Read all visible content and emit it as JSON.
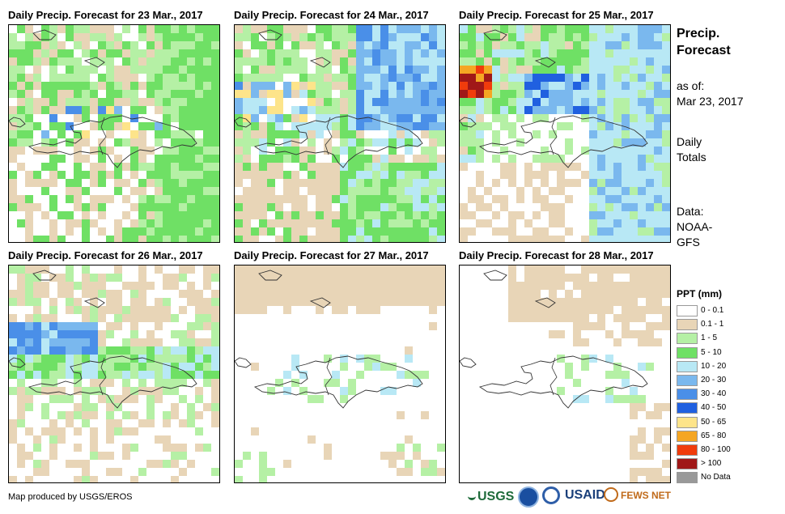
{
  "panels": [
    {
      "title": "Daily Precip. Forecast for 23 Mar., 2017",
      "pattern": "day23"
    },
    {
      "title": "Daily Precip. Forecast for 24 Mar., 2017",
      "pattern": "day24"
    },
    {
      "title": "Daily Precip. Forecast for 25 Mar., 2017",
      "pattern": "day25"
    },
    {
      "title": "Daily Precip. Forecast for 26 Mar., 2017",
      "pattern": "day26"
    },
    {
      "title": "Daily Precip. Forecast for 27 Mar., 2017",
      "pattern": "day27"
    },
    {
      "title": "Daily Precip. Forecast for 28 Mar., 2017",
      "pattern": "day28"
    }
  ],
  "sidebar": {
    "title_line1": "Precip.",
    "title_line2": "Forecast",
    "asof_label": "as of:",
    "asof_date": "Mar 23, 2017",
    "totals_line1": "Daily",
    "totals_line2": "Totals",
    "data_line1": "Data:",
    "data_line2": "NOAA-",
    "data_line3": "GFS"
  },
  "legend": {
    "title": "PPT (mm)",
    "items": [
      {
        "label": "0 - 0.1",
        "color": "#ffffff"
      },
      {
        "label": "0.1 - 1",
        "color": "#e8d5b7"
      },
      {
        "label": "1 - 5",
        "color": "#b5f0a5"
      },
      {
        "label": "5 - 10",
        "color": "#6fe065"
      },
      {
        "label": "10 - 20",
        "color": "#b8e8f5"
      },
      {
        "label": "20 - 30",
        "color": "#7ab8ee"
      },
      {
        "label": "30 - 40",
        "color": "#4a8fe8"
      },
      {
        "label": "40 - 50",
        "color": "#2060e0"
      },
      {
        "label": "50 - 65",
        "color": "#fde48a"
      },
      {
        "label": "65 - 80",
        "color": "#f5a623"
      },
      {
        "label": "80 - 100",
        "color": "#f03c0c"
      },
      {
        "label": "> 100",
        "color": "#a01818"
      },
      {
        "label": "No Data",
        "color": "#999999"
      }
    ]
  },
  "footer": {
    "credit": "Map produced by USGS/EROS"
  },
  "logos": {
    "usgs": "USGS",
    "usaid": "USAID",
    "fewsnet": "FEWS NET"
  }
}
